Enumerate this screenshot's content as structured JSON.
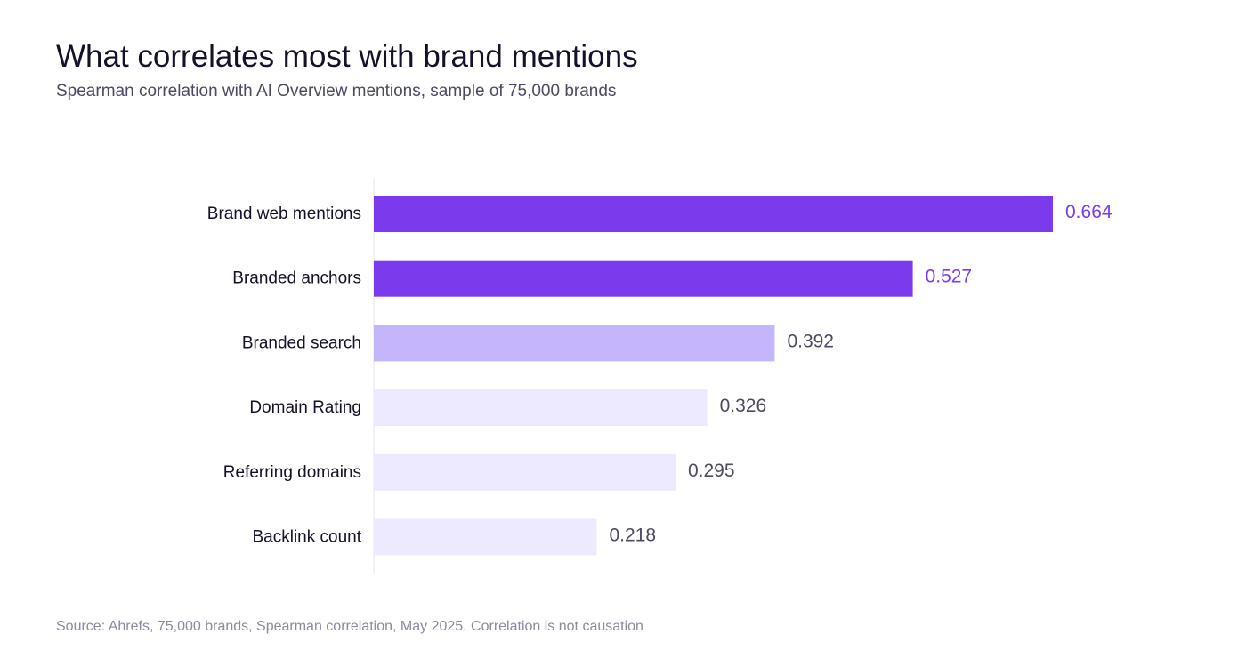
{
  "header": {
    "title": "What correlates most with brand mentions",
    "subtitle": "Spearman correlation with AI Overview mentions, sample of 75,000 brands"
  },
  "footer": {
    "source": "Source: Ahrefs, 75,000 brands, Spearman correlation, May 2025. Correlation is not causation"
  },
  "chart_data": {
    "type": "bar",
    "orientation": "horizontal",
    "categories": [
      "Brand web mentions",
      "Branded anchors",
      "Branded search",
      "Domain Rating",
      "Referring domains",
      "Backlink count"
    ],
    "values": [
      0.664,
      0.527,
      0.392,
      0.326,
      0.295,
      0.218
    ],
    "value_labels": [
      "0.664",
      "0.527",
      "0.392",
      "0.326",
      "0.295",
      "0.218"
    ],
    "xlim": [
      0,
      0.664
    ],
    "grid": false,
    "legend": "none",
    "bar_colors": [
      "#7c3aed",
      "#7c3aed",
      "#c4b5fd",
      "#ede9fe",
      "#ede9fe",
      "#ede9fe"
    ],
    "value_label_colors": [
      "#7c3aed",
      "#7c3aed",
      "#4b4a63",
      "#4b4a63",
      "#4b4a63",
      "#4b4a63"
    ],
    "category_label_color": "#14122b",
    "axis_color": "#e5e5ea"
  }
}
